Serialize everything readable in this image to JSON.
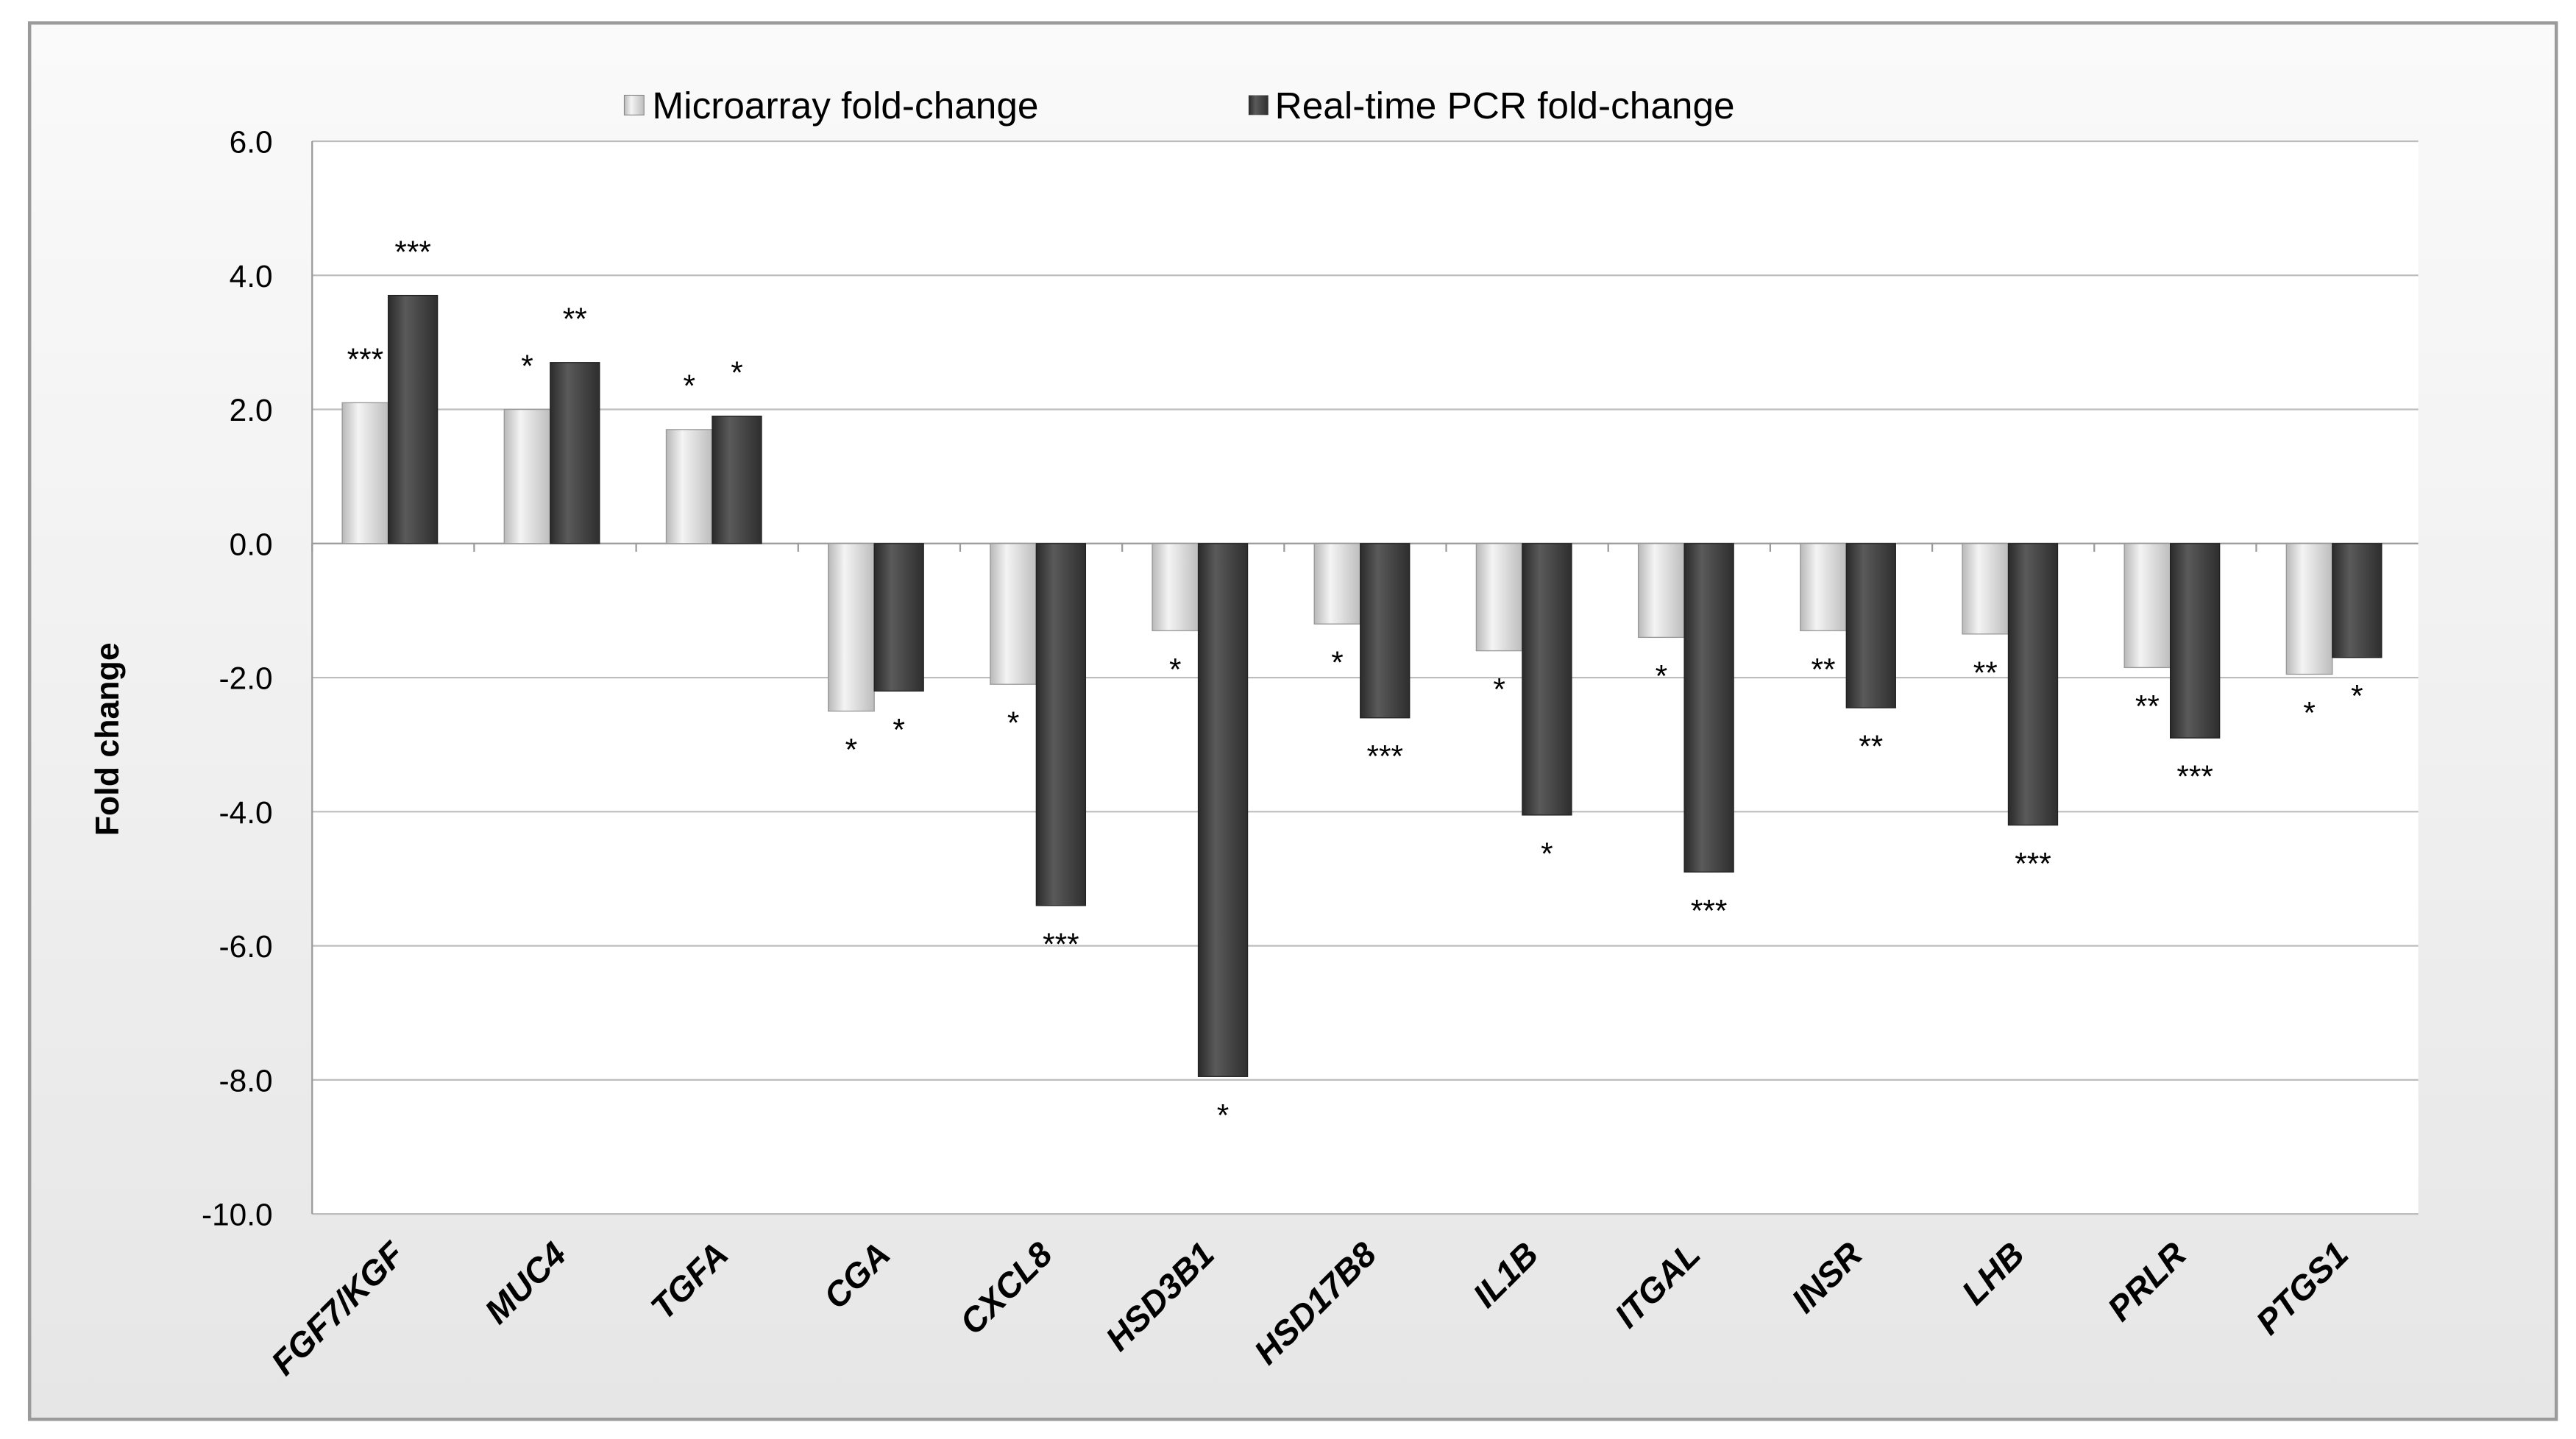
{
  "chart_data": {
    "type": "bar",
    "title": "",
    "xlabel": "",
    "ylabel": "Fold change",
    "ylim": [
      -10,
      6
    ],
    "yticks": [
      "6.0",
      "4.0",
      "2.0",
      "0.0",
      "-2.0",
      "-4.0",
      "-6.0",
      "-8.0",
      "-10.0"
    ],
    "ytick_values": [
      6,
      4,
      2,
      0,
      -2,
      -4,
      -6,
      -8,
      -10
    ],
    "grid": true,
    "legend_position": "top-center",
    "categories": [
      "FGF7/KGF",
      "MUC4",
      "TGFA",
      "CGA",
      "CXCL8",
      "HSD3B1",
      "HSD17B8",
      "IL1B",
      "ITGAL",
      "INSR",
      "LHB",
      "PRLR",
      "PTGS1"
    ],
    "series": [
      {
        "name": "Microarray fold-change",
        "color": "#d9d9d9",
        "values": [
          2.1,
          2.0,
          1.7,
          -2.5,
          -2.1,
          -1.3,
          -1.2,
          -1.6,
          -1.4,
          -1.3,
          -1.35,
          -1.85,
          -1.95
        ],
        "significance": [
          "***",
          "*",
          "*",
          "*",
          "*",
          "*",
          "*",
          "*",
          "*",
          "**",
          "**",
          "**",
          "*"
        ]
      },
      {
        "name": "Real-time PCR fold-change",
        "color": "#404040",
        "values": [
          3.7,
          2.7,
          1.9,
          -2.2,
          -5.4,
          -7.95,
          -2.6,
          -4.05,
          -4.9,
          -2.45,
          -4.2,
          -2.9,
          -1.7
        ],
        "significance": [
          "***",
          "**",
          "*",
          "*",
          "***",
          "*",
          "***",
          "*",
          "***",
          "**",
          "***",
          "***",
          "*"
        ]
      }
    ]
  }
}
